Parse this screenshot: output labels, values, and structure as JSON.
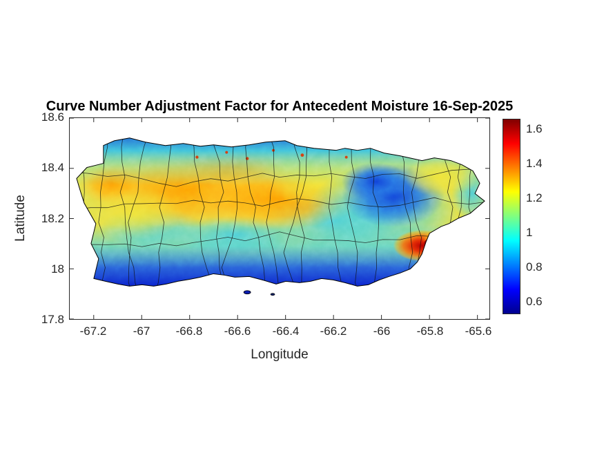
{
  "figure": {
    "title": "Curve Number Adjustment Factor for Antecedent Moisture 16-Sep-2025",
    "xlabel": "Longitude",
    "ylabel": "Latitude"
  },
  "chart_data": {
    "type": "heatmap",
    "title": "Curve Number Adjustment Factor for Antecedent Moisture 16-Sep-2025",
    "date": "16-Sep-2025",
    "region": "Puerto Rico",
    "xlabel": "Longitude",
    "ylabel": "Latitude",
    "xlim": [
      -67.3,
      -65.55
    ],
    "ylim": [
      17.8,
      18.6
    ],
    "x_ticks": [
      -67.2,
      -67,
      -66.8,
      -66.6,
      -66.4,
      -66.2,
      -66,
      -65.8,
      -65.6
    ],
    "x_tick_display": [
      "-67.2",
      "-67",
      "-66.8",
      "-66.6",
      "-66.4",
      "-66.2",
      "-66",
      "-65.8",
      "-65.6"
    ],
    "y_ticks": [
      18.6,
      18.4,
      18.2,
      18,
      17.8
    ],
    "y_tick_display": [
      "18.6",
      "18.4",
      "18.2",
      "18",
      "17.8"
    ],
    "grid": false,
    "colormap": "jet",
    "colorbar": {
      "position": "right",
      "range": [
        0.53,
        1.66
      ],
      "ticks": [
        1.6,
        1.4,
        1.2,
        1,
        0.8,
        0.6
      ],
      "tick_display": [
        "1.6",
        "1.4",
        "1.2",
        "1",
        "0.8",
        "0.6"
      ]
    },
    "overlays": [
      "municipality boundary lines (black)",
      "island coastline (black)"
    ],
    "value_regions": [
      {
        "area": "north coastal band",
        "approx_value": 0.8,
        "color": "blue-cyan"
      },
      {
        "area": "central and western interior",
        "approx_value": 1.25,
        "color": "yellow-orange"
      },
      {
        "area": "south coastal band",
        "approx_value": 0.6,
        "color": "dark blue"
      },
      {
        "area": "east-central interior",
        "approx_value": 0.75,
        "color": "blue"
      },
      {
        "area": "northeast patch",
        "approx_value": 1.2,
        "color": "yellow"
      },
      {
        "area": "southeast hotspot near -65.85, 18.05",
        "approx_value": 1.55,
        "color": "red"
      },
      {
        "area": "mid-south transition band",
        "approx_value": 1.0,
        "color": "cyan-green"
      }
    ]
  }
}
